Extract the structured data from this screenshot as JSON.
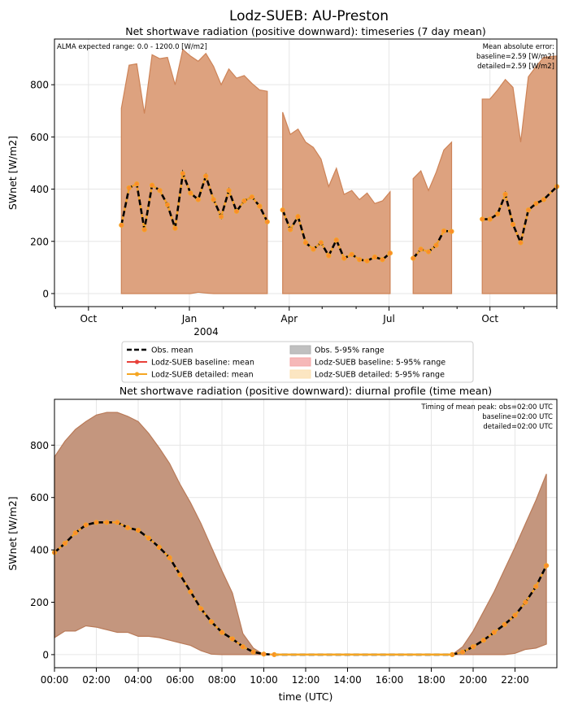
{
  "figure": {
    "suptitle": "Lodz-SUEB: AU-Preston"
  },
  "legend": {
    "entries": [
      {
        "label": "Obs. mean",
        "kind": "line",
        "color": "#000000",
        "dashed": true
      },
      {
        "label": "Lodz-SUEB baseline: mean",
        "kind": "line",
        "color": "#e8413a",
        "marker": true
      },
      {
        "label": "Lodz-SUEB detailed: mean",
        "kind": "line",
        "color": "#f5a623",
        "marker": true
      },
      {
        "label": "Obs. 5-95% range",
        "kind": "patch",
        "color": "#b0b0b0"
      },
      {
        "label": "Lodz-SUEB baseline: 5-95% range",
        "kind": "patch",
        "color": "#f4a6a6"
      },
      {
        "label": "Lodz-SUEB detailed: 5-95% range",
        "kind": "patch",
        "color": "#fbe0b3"
      }
    ]
  },
  "chart_data": [
    {
      "type": "area",
      "title": "Net shortwave radiation (positive downward): timeseries (7 day mean)",
      "xlabel": "",
      "ylabel": "SWnet [W/m2]",
      "xlim": [
        "2003-08-31",
        "2004-12-01"
      ],
      "ylim": [
        -50,
        975
      ],
      "yticks": [
        0,
        200,
        400,
        600,
        800
      ],
      "xticks": [
        {
          "date": "2003-10-01",
          "label": "Oct"
        },
        {
          "date": "2004-01-01",
          "label": "Jan"
        },
        {
          "date": "2004-04-01",
          "label": "Apr"
        },
        {
          "date": "2004-07-01",
          "label": "Jul"
        },
        {
          "date": "2004-10-01",
          "label": "Oct"
        }
      ],
      "xtick_year_label": "2004",
      "minor_xticks": [
        "2003-09-01",
        "2003-11-01",
        "2003-12-01",
        "2004-02-01",
        "2004-03-01",
        "2004-05-01",
        "2004-06-01",
        "2004-08-01",
        "2004-09-01",
        "2004-11-01",
        "2004-12-01"
      ],
      "grid": true,
      "annotation_left": "ALMA expected range: 0.0 - 1200.0 [W/m2]",
      "annotation_right": [
        "Mean absolute error:",
        "baseline=2.59 [W/m2]",
        "detailed=2.59 [W/m2]"
      ],
      "segments": [
        {
          "x": [
            "2003-10-31",
            "2003-11-07",
            "2003-11-14",
            "2003-11-21",
            "2003-11-28",
            "2003-12-05",
            "2003-12-12",
            "2003-12-19",
            "2003-12-26",
            "2004-01-02",
            "2004-01-09",
            "2004-01-16",
            "2004-01-23",
            "2004-01-30",
            "2004-02-06",
            "2004-02-13",
            "2004-02-20",
            "2004-02-27",
            "2004-03-05",
            "2004-03-12"
          ],
          "mean": [
            262,
            405,
            420,
            245,
            415,
            395,
            340,
            250,
            460,
            385,
            360,
            450,
            360,
            295,
            395,
            315,
            355,
            370,
            335,
            275
          ],
          "upper": [
            710,
            875,
            880,
            690,
            915,
            900,
            905,
            800,
            935,
            910,
            890,
            920,
            870,
            800,
            860,
            825,
            835,
            805,
            780,
            775
          ],
          "lower": [
            0,
            0,
            0,
            0,
            0,
            0,
            0,
            0,
            0,
            0,
            5,
            2,
            0,
            0,
            0,
            0,
            0,
            0,
            0,
            0
          ]
        },
        {
          "x": [
            "2004-03-26",
            "2004-04-02",
            "2004-04-09",
            "2004-04-16",
            "2004-04-23",
            "2004-04-30",
            "2004-05-07",
            "2004-05-14",
            "2004-05-21",
            "2004-05-28",
            "2004-06-04",
            "2004-06-11",
            "2004-06-18",
            "2004-06-25",
            "2004-07-02"
          ],
          "mean": [
            320,
            245,
            295,
            195,
            170,
            195,
            145,
            205,
            135,
            150,
            130,
            125,
            140,
            130,
            155
          ],
          "upper": [
            695,
            610,
            630,
            580,
            560,
            515,
            410,
            480,
            380,
            395,
            360,
            385,
            345,
            355,
            390
          ],
          "lower": [
            0,
            0,
            0,
            0,
            0,
            0,
            0,
            0,
            0,
            0,
            0,
            0,
            0,
            0,
            0
          ]
        },
        {
          "x": [
            "2004-07-23",
            "2004-07-30",
            "2004-08-06",
            "2004-08-13",
            "2004-08-20",
            "2004-08-27"
          ],
          "mean": [
            135,
            170,
            160,
            185,
            240,
            238
          ],
          "upper": [
            440,
            470,
            395,
            465,
            550,
            580
          ],
          "lower": [
            0,
            0,
            0,
            0,
            0,
            0
          ]
        },
        {
          "x": [
            "2004-09-24",
            "2004-10-01",
            "2004-10-08",
            "2004-10-15",
            "2004-10-22",
            "2004-10-29",
            "2004-11-05",
            "2004-11-12",
            "2004-11-19",
            "2004-12-01"
          ],
          "mean": [
            285,
            285,
            305,
            380,
            265,
            195,
            320,
            345,
            360,
            410
          ],
          "upper": [
            745,
            745,
            780,
            820,
            790,
            580,
            830,
            870,
            905,
            910
          ],
          "lower": [
            0,
            0,
            0,
            0,
            0,
            0,
            0,
            0,
            0,
            0
          ]
        }
      ]
    },
    {
      "type": "area",
      "title": "Net shortwave radiation (positive downward): diurnal profile (time mean)",
      "xlabel": "time (UTC)",
      "ylabel": "SWnet [W/m2]",
      "xlim": [
        0,
        24
      ],
      "ylim": [
        -50,
        975
      ],
      "yticks": [
        0,
        200,
        400,
        600,
        800
      ],
      "xticks": [
        {
          "h": 0,
          "label": "00:00"
        },
        {
          "h": 2,
          "label": "02:00"
        },
        {
          "h": 4,
          "label": "04:00"
        },
        {
          "h": 6,
          "label": "06:00"
        },
        {
          "h": 8,
          "label": "08:00"
        },
        {
          "h": 10,
          "label": "10:00"
        },
        {
          "h": 12,
          "label": "12:00"
        },
        {
          "h": 14,
          "label": "14:00"
        },
        {
          "h": 16,
          "label": "16:00"
        },
        {
          "h": 18,
          "label": "18:00"
        },
        {
          "h": 20,
          "label": "20:00"
        },
        {
          "h": 22,
          "label": "22:00"
        }
      ],
      "grid": true,
      "annotation_right": [
        "Timing of mean peak: obs=02:00 UTC",
        "baseline=02:00 UTC",
        "detailed=02:00 UTC"
      ],
      "x": [
        0,
        0.5,
        1,
        1.5,
        2,
        2.5,
        3,
        3.5,
        4,
        4.5,
        5,
        5.5,
        6,
        6.5,
        7,
        7.5,
        8,
        8.5,
        9,
        9.5,
        10,
        10.5,
        11,
        11.5,
        12,
        12.5,
        13,
        13.5,
        14,
        14.5,
        15,
        15.5,
        16,
        16.5,
        17,
        17.5,
        18,
        18.5,
        19,
        19.5,
        20,
        20.5,
        21,
        21.5,
        22,
        22.5,
        23,
        23.5
      ],
      "mean": [
        390,
        425,
        465,
        495,
        505,
        505,
        505,
        485,
        475,
        445,
        410,
        370,
        305,
        240,
        175,
        125,
        85,
        60,
        30,
        10,
        2,
        0,
        0,
        0,
        0,
        0,
        0,
        0,
        0,
        0,
        0,
        0,
        0,
        0,
        0,
        0,
        0,
        0,
        0,
        10,
        30,
        55,
        85,
        115,
        150,
        200,
        260,
        340
      ],
      "mean_markers_end": 10.5,
      "mean_markers_start": 19,
      "upper": [
        755,
        815,
        860,
        890,
        915,
        925,
        925,
        910,
        890,
        845,
        790,
        730,
        650,
        580,
        500,
        410,
        320,
        235,
        80,
        25,
        0,
        0,
        0,
        0,
        0,
        0,
        0,
        0,
        0,
        0,
        0,
        0,
        0,
        0,
        0,
        0,
        0,
        0,
        0,
        30,
        90,
        165,
        240,
        325,
        410,
        500,
        590,
        690
      ],
      "lower": [
        65,
        90,
        90,
        110,
        105,
        95,
        85,
        85,
        70,
        70,
        65,
        55,
        45,
        35,
        15,
        2,
        0,
        0,
        0,
        0,
        0,
        0,
        0,
        0,
        0,
        0,
        0,
        0,
        0,
        0,
        0,
        0,
        0,
        0,
        0,
        0,
        0,
        0,
        0,
        0,
        0,
        0,
        0,
        0,
        5,
        20,
        25,
        40
      ]
    }
  ]
}
